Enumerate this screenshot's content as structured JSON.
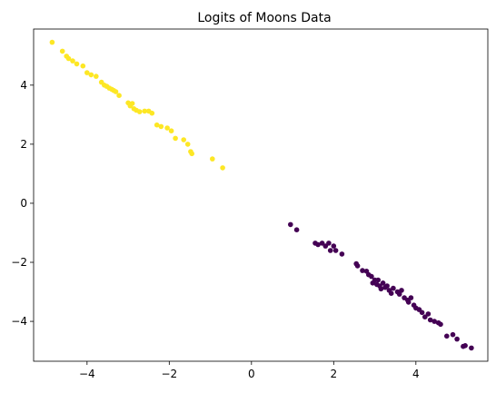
{
  "chart_data": {
    "type": "scatter",
    "title": "Logits of Moons Data",
    "xlabel": "",
    "ylabel": "",
    "xlim": [
      -5.3,
      5.75
    ],
    "ylim": [
      -5.35,
      5.9
    ],
    "x_ticks": [
      -4,
      -2,
      0,
      2,
      4
    ],
    "y_ticks": [
      -4,
      -2,
      0,
      2,
      4
    ],
    "grid": false,
    "legend": "none",
    "series": [
      {
        "color": "#fde725",
        "points": [
          [
            -4.85,
            5.45
          ],
          [
            -4.6,
            5.15
          ],
          [
            -4.5,
            4.98
          ],
          [
            -4.45,
            4.9
          ],
          [
            -4.35,
            4.82
          ],
          [
            -4.25,
            4.72
          ],
          [
            -4.1,
            4.65
          ],
          [
            -4.0,
            4.42
          ],
          [
            -3.9,
            4.35
          ],
          [
            -3.78,
            4.3
          ],
          [
            -3.65,
            4.1
          ],
          [
            -3.58,
            4.0
          ],
          [
            -3.52,
            3.96
          ],
          [
            -3.46,
            3.9
          ],
          [
            -3.4,
            3.86
          ],
          [
            -3.35,
            3.82
          ],
          [
            -3.3,
            3.78
          ],
          [
            -3.22,
            3.65
          ],
          [
            -3.0,
            3.4
          ],
          [
            -2.95,
            3.3
          ],
          [
            -2.9,
            3.38
          ],
          [
            -2.86,
            3.2
          ],
          [
            -2.8,
            3.15
          ],
          [
            -2.72,
            3.1
          ],
          [
            -2.6,
            3.12
          ],
          [
            -2.5,
            3.12
          ],
          [
            -2.42,
            3.05
          ],
          [
            -2.3,
            2.65
          ],
          [
            -2.2,
            2.6
          ],
          [
            -2.05,
            2.55
          ],
          [
            -1.95,
            2.45
          ],
          [
            -1.85,
            2.2
          ],
          [
            -1.65,
            2.15
          ],
          [
            -1.55,
            2.0
          ],
          [
            -1.48,
            1.75
          ],
          [
            -1.45,
            1.68
          ],
          [
            -0.95,
            1.5
          ],
          [
            -0.7,
            1.2
          ]
        ]
      },
      {
        "color": "#440154",
        "points": [
          [
            0.95,
            -0.72
          ],
          [
            1.1,
            -0.9
          ],
          [
            1.55,
            -1.35
          ],
          [
            1.62,
            -1.4
          ],
          [
            1.72,
            -1.35
          ],
          [
            1.8,
            -1.45
          ],
          [
            1.88,
            -1.35
          ],
          [
            1.92,
            -1.6
          ],
          [
            2.0,
            -1.45
          ],
          [
            2.05,
            -1.6
          ],
          [
            2.2,
            -1.72
          ],
          [
            2.55,
            -2.05
          ],
          [
            2.58,
            -2.12
          ],
          [
            2.7,
            -2.28
          ],
          [
            2.8,
            -2.3
          ],
          [
            2.85,
            -2.42
          ],
          [
            2.92,
            -2.48
          ],
          [
            2.95,
            -2.7
          ],
          [
            3.0,
            -2.6
          ],
          [
            3.05,
            -2.75
          ],
          [
            3.08,
            -2.6
          ],
          [
            3.12,
            -2.8
          ],
          [
            3.15,
            -2.9
          ],
          [
            3.2,
            -2.7
          ],
          [
            3.25,
            -2.85
          ],
          [
            3.3,
            -2.8
          ],
          [
            3.35,
            -2.95
          ],
          [
            3.4,
            -3.05
          ],
          [
            3.45,
            -2.88
          ],
          [
            3.55,
            -3.0
          ],
          [
            3.6,
            -3.08
          ],
          [
            3.65,
            -2.95
          ],
          [
            3.72,
            -3.2
          ],
          [
            3.8,
            -3.28
          ],
          [
            3.82,
            -3.35
          ],
          [
            3.88,
            -3.2
          ],
          [
            3.95,
            -3.45
          ],
          [
            4.0,
            -3.55
          ],
          [
            4.08,
            -3.6
          ],
          [
            4.15,
            -3.7
          ],
          [
            4.22,
            -3.85
          ],
          [
            4.3,
            -3.75
          ],
          [
            4.35,
            -3.95
          ],
          [
            4.45,
            -4.0
          ],
          [
            4.55,
            -4.05
          ],
          [
            4.6,
            -4.1
          ],
          [
            4.75,
            -4.5
          ],
          [
            4.9,
            -4.45
          ],
          [
            5.0,
            -4.6
          ],
          [
            5.15,
            -4.85
          ],
          [
            5.2,
            -4.82
          ],
          [
            5.35,
            -4.9
          ]
        ]
      }
    ]
  }
}
